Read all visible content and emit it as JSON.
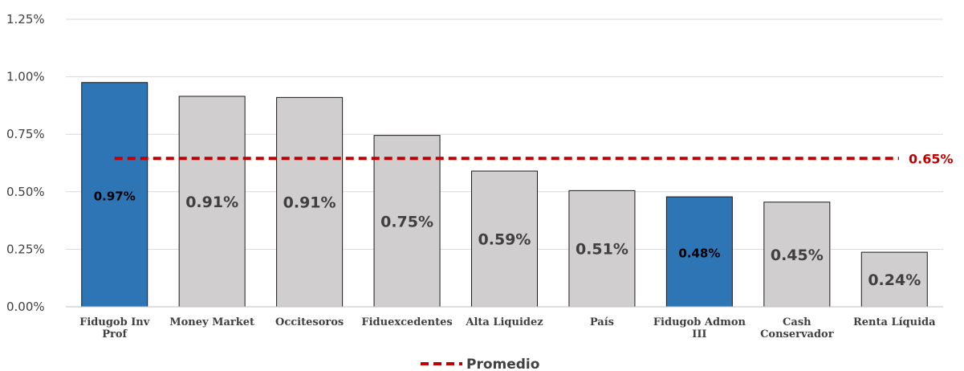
{
  "chart_data": {
    "type": "bar",
    "categories": [
      [
        "Fidugob Inv",
        "Prof"
      ],
      [
        "Money Market"
      ],
      [
        "Occitesoros"
      ],
      [
        "Fiduexcedentes"
      ],
      [
        "Alta Liquidez"
      ],
      [
        "País"
      ],
      [
        "Fidugob Admon",
        "III"
      ],
      [
        "Cash",
        "Conservador"
      ],
      [
        "Renta Líquida"
      ]
    ],
    "values": [
      0.975,
      0.915,
      0.91,
      0.745,
      0.59,
      0.505,
      0.478,
      0.455,
      0.237
    ],
    "value_labels": [
      "0.97%",
      "0.91%",
      "0.91%",
      "0.75%",
      "0.59%",
      "0.51%",
      "0.48%",
      "0.45%",
      "0.24%"
    ],
    "highlighted": [
      true,
      false,
      false,
      false,
      false,
      false,
      true,
      false,
      false
    ],
    "ylim": [
      0,
      1.25
    ],
    "y_ticks": [
      0,
      0.25,
      0.5,
      0.75,
      1.0,
      1.25
    ],
    "y_tick_labels": [
      "0.00%",
      "0.25%",
      "0.50%",
      "0.75%",
      "1.00%",
      "1.25%"
    ],
    "grid": true,
    "average": {
      "value": 0.645,
      "label": "0.65%",
      "series_name": "Promedio"
    },
    "legend_position": "bottom-center",
    "colors": {
      "highlight_bar": "#2e75b6",
      "bar": "#d0cece",
      "bar_stroke": "#1a1a1a",
      "average_line": "#c00000",
      "grid": "#d9d9d9",
      "axis": "#bfbfbf"
    }
  }
}
